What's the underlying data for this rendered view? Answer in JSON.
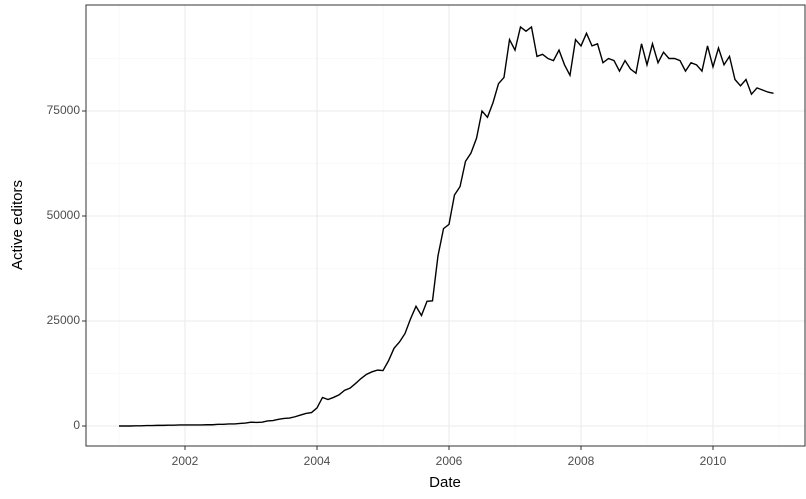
{
  "chart_data": {
    "type": "line",
    "x_label": "Date",
    "y_label": "Active editors",
    "x": [
      2001,
      2001.083,
      2001.167,
      2001.25,
      2001.333,
      2001.417,
      2001.5,
      2001.583,
      2001.667,
      2001.75,
      2001.833,
      2001.917,
      2002,
      2002.083,
      2002.167,
      2002.25,
      2002.333,
      2002.417,
      2002.5,
      2002.583,
      2002.667,
      2002.75,
      2002.833,
      2002.917,
      2003,
      2003.083,
      2003.167,
      2003.25,
      2003.333,
      2003.417,
      2003.5,
      2003.583,
      2003.667,
      2003.75,
      2003.833,
      2003.917,
      2004,
      2004.083,
      2004.167,
      2004.25,
      2004.333,
      2004.417,
      2004.5,
      2004.583,
      2004.667,
      2004.75,
      2004.833,
      2004.917,
      2005,
      2005.083,
      2005.167,
      2005.25,
      2005.333,
      2005.417,
      2005.5,
      2005.583,
      2005.667,
      2005.75,
      2005.833,
      2005.917,
      2006,
      2006.083,
      2006.167,
      2006.25,
      2006.333,
      2006.417,
      2006.5,
      2006.583,
      2006.667,
      2006.75,
      2006.833,
      2006.917,
      2007,
      2007.083,
      2007.167,
      2007.25,
      2007.333,
      2007.417,
      2007.5,
      2007.583,
      2007.667,
      2007.75,
      2007.833,
      2007.917,
      2008,
      2008.083,
      2008.167,
      2008.25,
      2008.333,
      2008.417,
      2008.5,
      2008.583,
      2008.667,
      2008.75,
      2008.833,
      2008.917,
      2009,
      2009.083,
      2009.167,
      2009.25,
      2009.333,
      2009.417,
      2009.5,
      2009.583,
      2009.667,
      2009.75,
      2009.833,
      2009.917,
      2010,
      2010.083,
      2010.167,
      2010.25,
      2010.333,
      2010.417,
      2010.5,
      2010.583,
      2010.667,
      2010.75,
      2010.833,
      2010.917
    ],
    "series": [
      {
        "color": "#000000",
        "values": [
          0,
          0,
          0,
          50,
          50,
          100,
          100,
          150,
          150,
          200,
          200,
          250,
          250,
          250,
          250,
          250,
          300,
          300,
          400,
          400,
          500,
          500,
          600,
          700,
          900,
          850,
          900,
          1200,
          1300,
          1600,
          1800,
          1900,
          2200,
          2600,
          3000,
          3200,
          4300,
          6800,
          6300,
          6800,
          7400,
          8500,
          9000,
          10100,
          11300,
          12300,
          12900,
          13300,
          13200,
          15500,
          18500,
          20000,
          22000,
          25500,
          28500,
          26300,
          29700,
          29800,
          40500,
          47000,
          48000,
          55000,
          57000,
          63000,
          65000,
          68500,
          75000,
          73500,
          77000,
          81500,
          83000,
          92000,
          89500,
          95000,
          94000,
          95000,
          88000,
          88500,
          87500,
          87000,
          89500,
          86000,
          83500,
          92000,
          90500,
          93500,
          90500,
          91000,
          86500,
          87500,
          87000,
          84500,
          87000,
          85000,
          84000,
          91000,
          86000,
          91000,
          86500,
          89000,
          87500,
          87500,
          87000,
          84500,
          86500,
          86000,
          84500,
          90500,
          85500,
          90000,
          86000,
          88000,
          82500,
          81000,
          82500,
          79000,
          80500,
          80000,
          79500,
          79200
        ]
      }
    ],
    "xlim": [
      2000.5,
      2011.394
    ],
    "xticks": [
      2002,
      2004,
      2006,
      2008,
      2010
    ],
    "ylim": [
      -4762,
      100238
    ],
    "yticks": [
      0,
      25000,
      50000,
      75000
    ],
    "grid": true
  }
}
